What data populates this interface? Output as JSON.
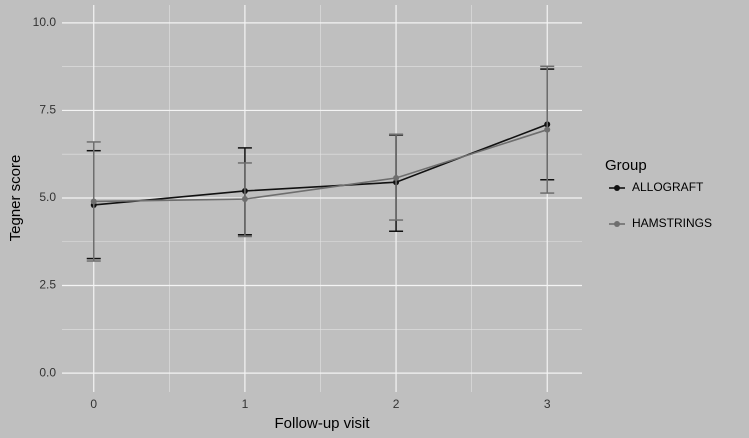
{
  "chart_data": {
    "type": "line",
    "x_label": "Follow-up visit",
    "y_label": "Tegner score",
    "x": [
      0,
      1,
      2,
      3
    ],
    "xlim": [
      -0.21,
      3.23
    ],
    "xticks": [
      0,
      1,
      2,
      3
    ],
    "ylim": [
      -0.54,
      10.51
    ],
    "yticks": [
      {
        "value": 0,
        "label": "0.0"
      },
      {
        "value": 2.5,
        "label": "2.5"
      },
      {
        "value": 5,
        "label": "5.0"
      },
      {
        "value": 7.5,
        "label": "7.5"
      },
      {
        "value": 10,
        "label": "10.0"
      }
    ],
    "grid": true,
    "legend_title": "Group",
    "legend_position": "right",
    "series": [
      {
        "name": "ALLOGRAFT",
        "color": "#111111",
        "values": [
          4.8,
          5.2,
          5.45,
          7.1
        ],
        "lower": [
          3.27,
          3.95,
          4.05,
          5.52
        ],
        "upper": [
          6.35,
          6.43,
          6.8,
          8.68
        ]
      },
      {
        "name": "HAMSTRINGS",
        "color": "#6e6e6e",
        "values": [
          4.9,
          4.97,
          5.57,
          6.95
        ],
        "lower": [
          3.2,
          3.9,
          4.37,
          5.14
        ],
        "upper": [
          6.6,
          6.0,
          6.82,
          8.76
        ]
      }
    ]
  }
}
